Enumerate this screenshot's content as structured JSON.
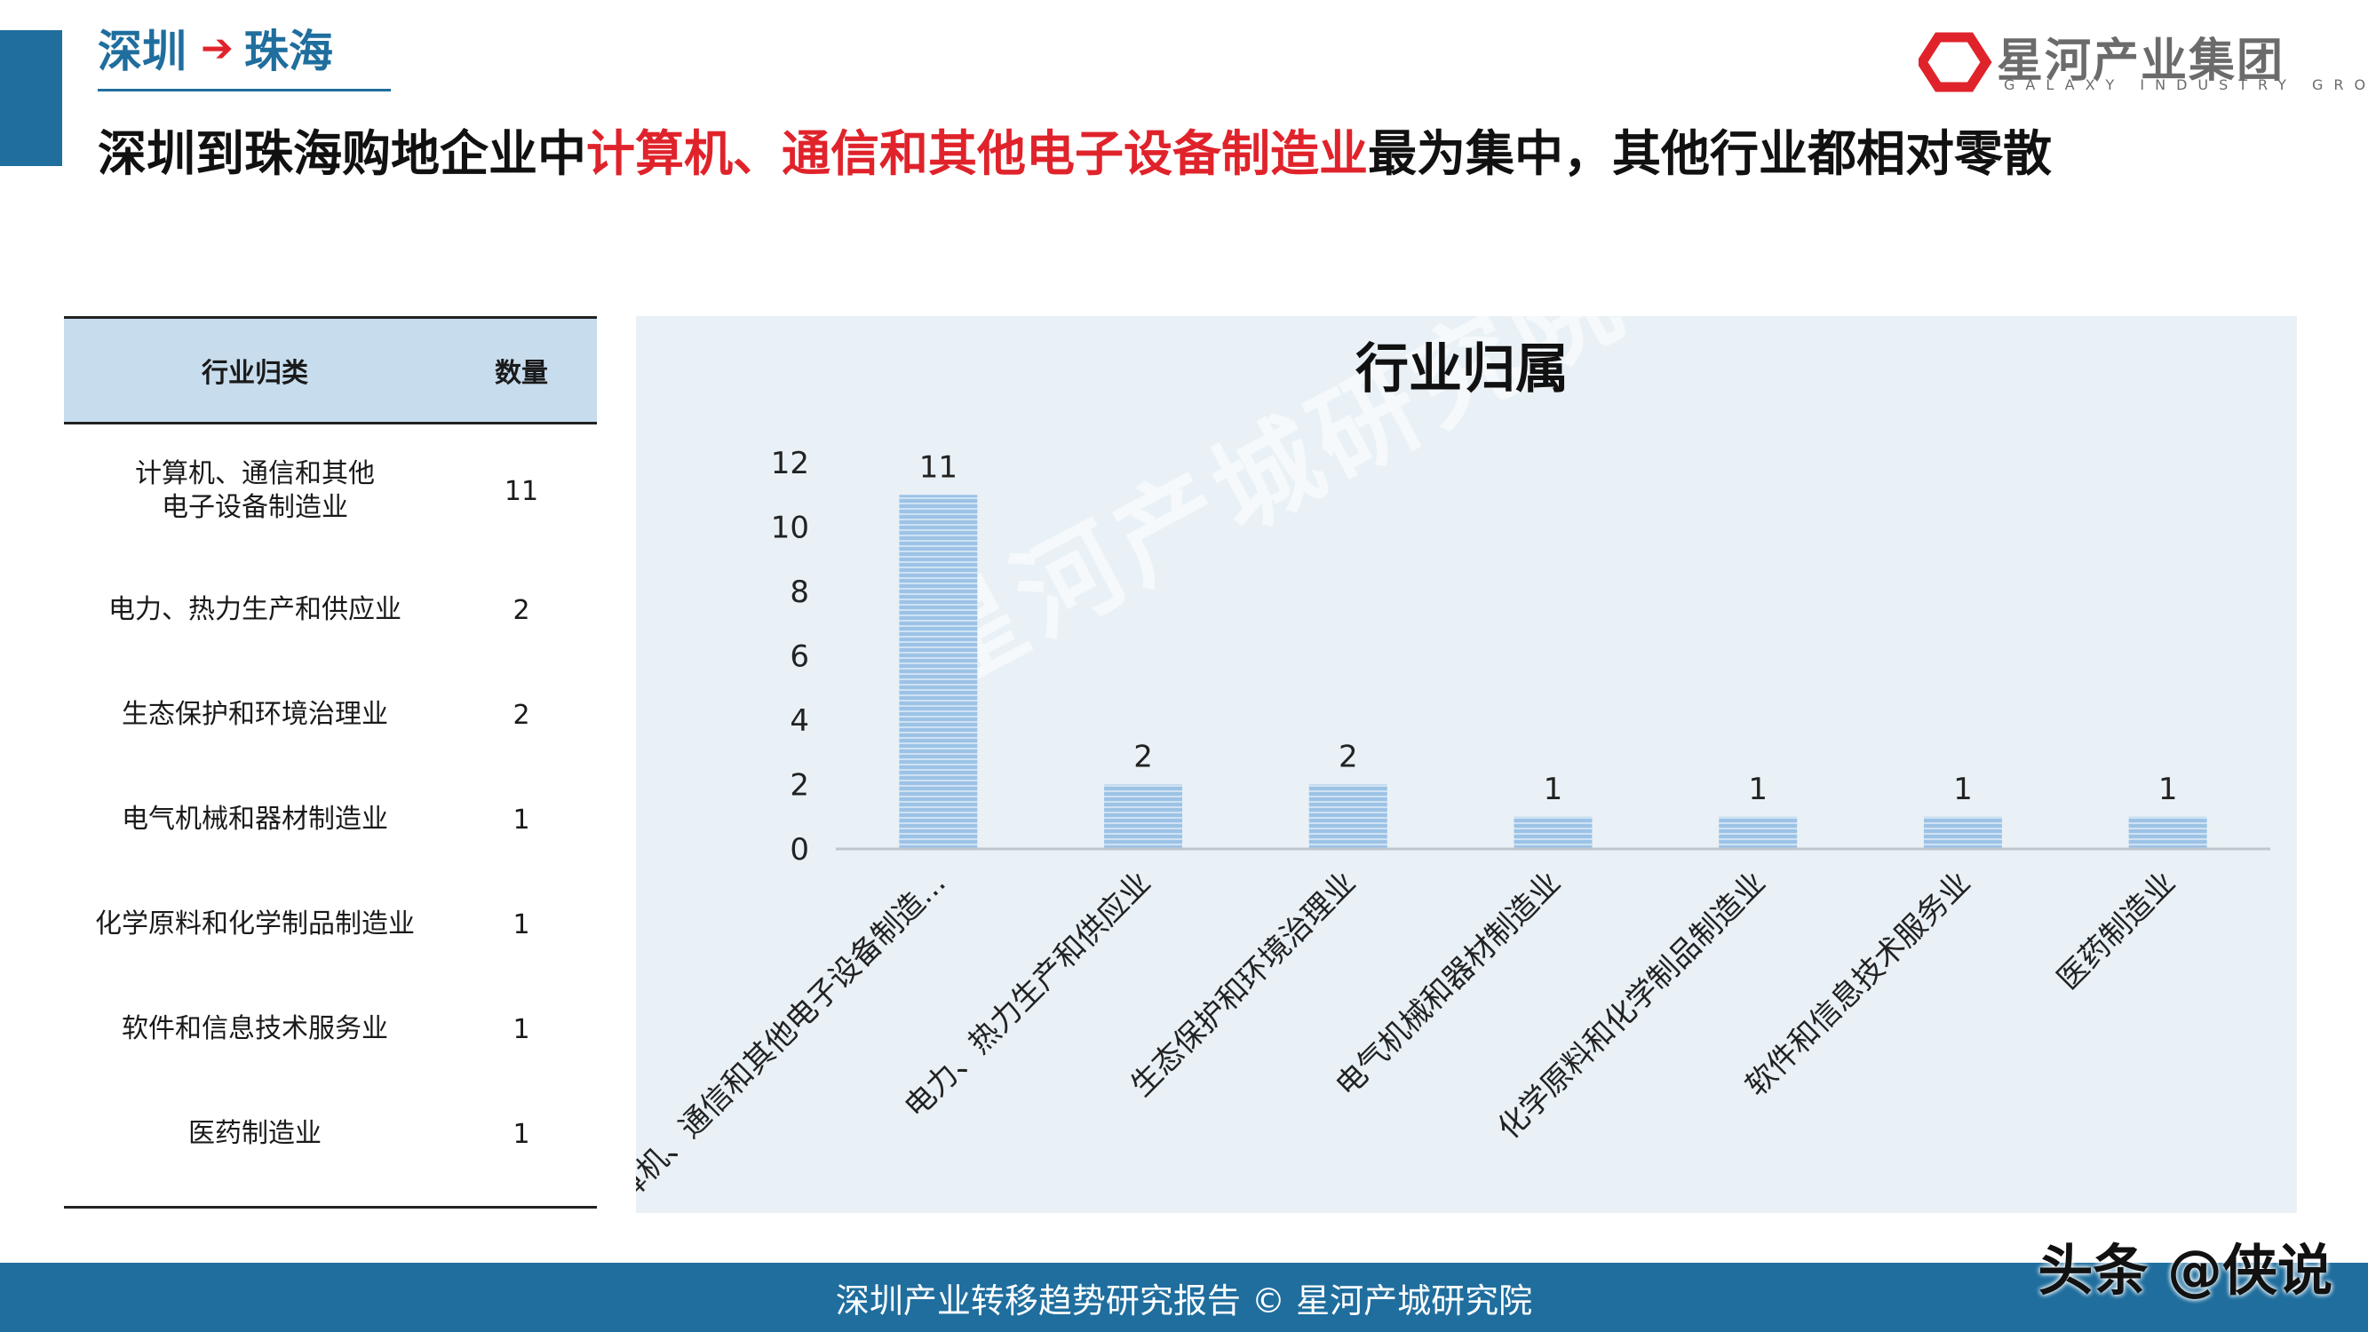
{
  "header": {
    "crumb_from": "深圳",
    "crumb_to": "珠海",
    "headline_part1": "深圳到珠海购地企业中",
    "headline_highlight": "计算机、通信和其他电子设备制造业",
    "headline_part2": "最为集中，其他行业都相对零散",
    "logo_cn": "星河产业集团",
    "logo_en": "GALAXY INDUSTRY GROUP"
  },
  "table": {
    "col_industry": "行业归类",
    "col_count": "数量",
    "rows": [
      {
        "industry": "计算机、通信和其他电子设备制造业",
        "count": "11"
      },
      {
        "industry": "电力、热力生产和供应业",
        "count": "2"
      },
      {
        "industry": "生态保护和环境治理业",
        "count": "2"
      },
      {
        "industry": "电气机械和器材制造业",
        "count": "1"
      },
      {
        "industry": "化学原料和化学制品制造业",
        "count": "1"
      },
      {
        "industry": "软件和信息技术服务业",
        "count": "1"
      },
      {
        "industry": "医药制造业",
        "count": "1"
      }
    ]
  },
  "chart_data": {
    "type": "bar",
    "title": "行业归属",
    "categories": [
      "计算机、通信和其他电子设备制造...",
      "电力、热力生产和供应业",
      "生态保护和环境治理业",
      "电气机械和器材制造业",
      "化学原料和化学制品制造业",
      "软件和信息技术服务业",
      "医药制造业"
    ],
    "values": [
      11,
      2,
      2,
      1,
      1,
      1,
      1
    ],
    "y_ticks": [
      0,
      2,
      4,
      6,
      8,
      10,
      12
    ],
    "ylim": [
      0,
      12
    ],
    "data_labels": true,
    "grid": false,
    "bar_color": "#9cc3e6"
  },
  "watermark": "星河产城研究院",
  "footer": {
    "text": "深圳产业转移趋势研究报告 © 星河产城研究院",
    "mark": "头条 @侠说"
  },
  "colors": {
    "accent_blue": "#1f6e9e",
    "accent_red": "#e0232b",
    "table_header": "#c7dced",
    "chart_bg": "#e9f1f6"
  }
}
